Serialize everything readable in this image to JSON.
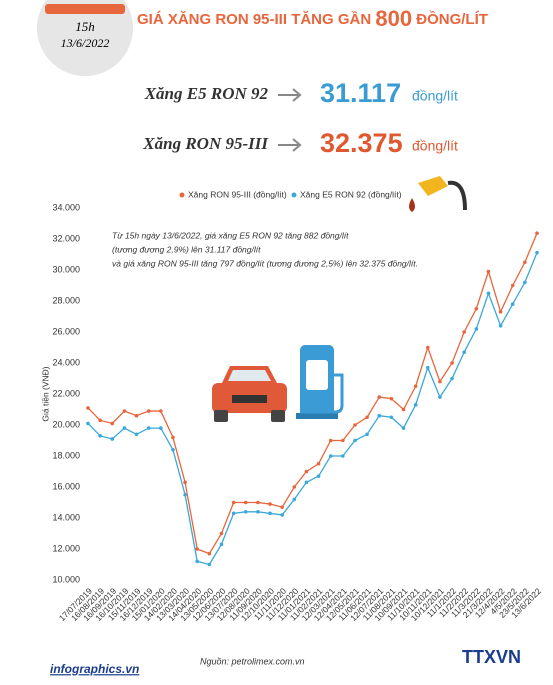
{
  "header": {
    "time": "15h",
    "date": "13/6/2022",
    "title": [
      "GIÁ XĂNG RON 95-III TĂNG GẦN ",
      "800",
      " ĐỒNG/LÍT"
    ]
  },
  "prices": [
    {
      "name": "Xăng E5 RON 92",
      "value": "31.117",
      "unit": "đồng/lít"
    },
    {
      "name": "Xăng RON 95-III",
      "value": "32.375",
      "unit": "đồng/lít"
    }
  ],
  "chart_data": {
    "type": "line",
    "y_label": "Giá tiền (VNĐ)",
    "annotation": [
      "Từ 15h ngày 13/6/2022, giá xăng E5 RON 92 tăng 882 đồng/lít",
      "(tương đương 2,9%) lên 31.117 đồng/lít",
      "và giá xăng RON 95-III tăng 797 đồng/lít (tương đương 2,5%) lên 32.375 đồng/lít."
    ],
    "categories": [
      "17/07/2019",
      "16/08/2019",
      "16/09/2019",
      "16/10/2019",
      "15/11/2019",
      "16/12/2019",
      "15/01/2020",
      "14/02/2020",
      "13/03/2020",
      "14/04/2020",
      "13/05/2020",
      "12/06/2020",
      "13/07/2020",
      "12/08/2020",
      "11/09/2020",
      "12/10/2020",
      "11/11/2020",
      "11/12/2020",
      "11/01/2021",
      "11/02/2021",
      "12/03/2021",
      "12/04/2021",
      "12/05/2021",
      "11/06/2021",
      "12/07/2021",
      "11/08/2021",
      "10/09/2021",
      "11/10/2021",
      "10/11/2021",
      "10/12/2021",
      "11/1/2022",
      "11/2/2022",
      "11/3/2022",
      "21/3/2022",
      "12/4/2022",
      "4/5/2022",
      "23/5/2022",
      "13/6/2022"
    ],
    "series": [
      {
        "name": "Xăng RON 95-III (đồng/lít)",
        "color": "#e8663d",
        "values": [
          21100,
          20300,
          20100,
          20900,
          20600,
          20900,
          20900,
          19200,
          16300,
          12000,
          11700,
          13000,
          15000,
          15000,
          15000,
          14900,
          14700,
          16000,
          17000,
          17500,
          19000,
          19000,
          20000,
          20500,
          21800,
          21700,
          21000,
          22500,
          25000,
          22800,
          24000,
          26000,
          27500,
          29900,
          27300,
          29000,
          30500,
          32375
        ]
      },
      {
        "name": "Xăng E5 RON 92 (đồng/lít)",
        "color": "#3aa8d8",
        "values": [
          20100,
          19300,
          19100,
          19800,
          19400,
          19800,
          19800,
          18400,
          15500,
          11200,
          11000,
          12300,
          14300,
          14400,
          14400,
          14300,
          14200,
          15200,
          16300,
          16700,
          18000,
          18000,
          19000,
          19400,
          20600,
          20500,
          19800,
          21300,
          23700,
          21800,
          23000,
          24700,
          26200,
          28500,
          26400,
          27800,
          29200,
          31117
        ]
      }
    ],
    "ylim": [
      10000,
      34000
    ],
    "yticks": [
      {
        "value": 10000,
        "label": "10.000"
      },
      {
        "value": 12000,
        "label": "12.000"
      },
      {
        "value": 14000,
        "label": "14.000"
      },
      {
        "value": 16000,
        "label": "16.000"
      },
      {
        "value": 18000,
        "label": "18.000"
      },
      {
        "value": 20000,
        "label": "20.000"
      },
      {
        "value": 22000,
        "label": "22.000"
      },
      {
        "value": 24000,
        "label": "24.000"
      },
      {
        "value": 26000,
        "label": "26.000"
      },
      {
        "value": 28000,
        "label": "28.000"
      },
      {
        "value": 30000,
        "label": "30.000"
      },
      {
        "value": 32000,
        "label": "32.000"
      },
      {
        "value": 34000,
        "label": "34.000"
      }
    ],
    "grid": false
  },
  "footer": {
    "site": "infographics.vn",
    "source": "Nguồn: petrolimex.com.vn",
    "agency": "TTXVN"
  }
}
